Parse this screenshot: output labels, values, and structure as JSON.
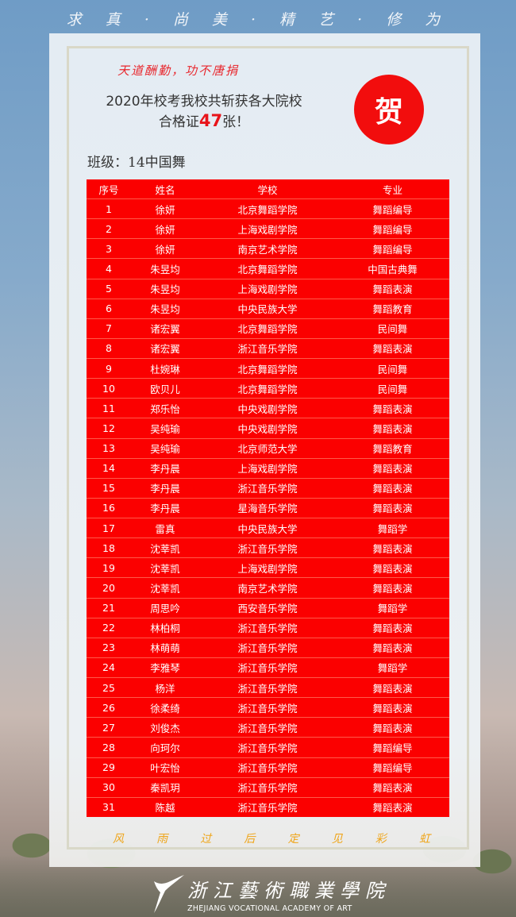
{
  "header": {
    "motto": "求 真 · 尚 美 · 精 艺 · 修 为"
  },
  "card": {
    "slogan": "天道酬勤，功不唐捐",
    "headline_line1": "2020年校考我校共斩获各大院校",
    "headline_prefix": "合格证",
    "headline_count": "47",
    "headline_suffix": "张！",
    "seal": "贺",
    "class_label": "班级：14中国舞",
    "footer_motto": [
      "风",
      "雨",
      "过",
      "后",
      "定",
      "见",
      "彩",
      "虹"
    ]
  },
  "table": {
    "columns": [
      "序号",
      "姓名",
      "学校",
      "专业"
    ],
    "rows": [
      [
        "1",
        "徐妍",
        "北京舞蹈学院",
        "舞蹈编导"
      ],
      [
        "2",
        "徐妍",
        "上海戏剧学院",
        "舞蹈编导"
      ],
      [
        "3",
        "徐妍",
        "南京艺术学院",
        "舞蹈编导"
      ],
      [
        "4",
        "朱昱均",
        "北京舞蹈学院",
        "中国古典舞"
      ],
      [
        "5",
        "朱昱均",
        "上海戏剧学院",
        "舞蹈表演"
      ],
      [
        "6",
        "朱昱均",
        "中央民族大学",
        "舞蹈教育"
      ],
      [
        "7",
        "诸宏翼",
        "北京舞蹈学院",
        "民间舞"
      ],
      [
        "8",
        "诸宏翼",
        "浙江音乐学院",
        "舞蹈表演"
      ],
      [
        "9",
        "杜婉琳",
        "北京舞蹈学院",
        "民间舞"
      ],
      [
        "10",
        "欧贝儿",
        "北京舞蹈学院",
        "民间舞"
      ],
      [
        "11",
        "郑乐怡",
        "中央戏剧学院",
        "舞蹈表演"
      ],
      [
        "12",
        "吴纯瑜",
        "中央戏剧学院",
        "舞蹈表演"
      ],
      [
        "13",
        "吴纯瑜",
        "北京师范大学",
        "舞蹈教育"
      ],
      [
        "14",
        "李丹晨",
        "上海戏剧学院",
        "舞蹈表演"
      ],
      [
        "15",
        "李丹晨",
        "浙江音乐学院",
        "舞蹈表演"
      ],
      [
        "16",
        "李丹晨",
        "星海音乐学院",
        "舞蹈表演"
      ],
      [
        "17",
        "雷真",
        "中央民族大学",
        "舞蹈学"
      ],
      [
        "18",
        "沈莘凯",
        "浙江音乐学院",
        "舞蹈表演"
      ],
      [
        "19",
        "沈莘凯",
        "上海戏剧学院",
        "舞蹈表演"
      ],
      [
        "20",
        "沈莘凯",
        "南京艺术学院",
        "舞蹈表演"
      ],
      [
        "21",
        "周思吟",
        "西安音乐学院",
        "舞蹈学"
      ],
      [
        "22",
        "林柏桐",
        "浙江音乐学院",
        "舞蹈表演"
      ],
      [
        "23",
        "林萌萌",
        "浙江音乐学院",
        "舞蹈表演"
      ],
      [
        "24",
        "李雅琴",
        "浙江音乐学院",
        "舞蹈学"
      ],
      [
        "25",
        "杨洋",
        "浙江音乐学院",
        "舞蹈表演"
      ],
      [
        "26",
        "徐柔绮",
        "浙江音乐学院",
        "舞蹈表演"
      ],
      [
        "27",
        "刘俊杰",
        "浙江音乐学院",
        "舞蹈表演"
      ],
      [
        "28",
        "向珂尔",
        "浙江音乐学院",
        "舞蹈编导"
      ],
      [
        "29",
        "叶宏怡",
        "浙江音乐学院",
        "舞蹈编导"
      ],
      [
        "30",
        "秦凯玥",
        "浙江音乐学院",
        "舞蹈表演"
      ],
      [
        "31",
        "陈越",
        "浙江音乐学院",
        "舞蹈表演"
      ]
    ]
  },
  "logo": {
    "name_cn": "浙江藝術職業學院",
    "name_en": "ZHEJIANG VOCATIONAL ACADEMY OF ART"
  },
  "colors": {
    "table_bg": "#fb0000",
    "seal": "#f20d0d",
    "accent_gold": "#efa51a"
  }
}
